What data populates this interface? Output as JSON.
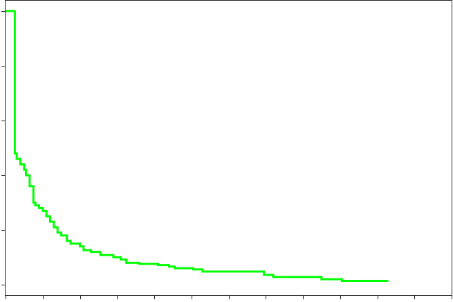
{
  "chart_data": {
    "type": "line",
    "step": true,
    "title": "",
    "xlabel": "",
    "ylabel": "",
    "xlim": [
      0,
      12
    ],
    "ylim": [
      0,
      5
    ],
    "grid": false,
    "x_ticks": [
      0,
      1,
      2,
      3,
      4,
      5,
      6,
      7,
      8,
      9,
      10,
      11,
      12
    ],
    "y_ticks": [
      0,
      1,
      2,
      3,
      4,
      5
    ],
    "series": [
      {
        "color": "#00ff00",
        "x": [
          0,
          0.25,
          0.3,
          0.4,
          0.5,
          0.55,
          0.65,
          0.75,
          0.8,
          0.9,
          1.0,
          1.1,
          1.2,
          1.3,
          1.4,
          1.5,
          1.65,
          1.75,
          2.0,
          2.1,
          2.3,
          2.55,
          2.9,
          3.1,
          3.25,
          3.6,
          4.1,
          4.4,
          4.55,
          5.05,
          5.3,
          6.6,
          6.95,
          7.2,
          8.5,
          9.05,
          10.3
        ],
        "y": [
          5.0,
          2.4,
          2.3,
          2.2,
          2.1,
          2.0,
          1.8,
          1.5,
          1.45,
          1.4,
          1.35,
          1.25,
          1.15,
          1.05,
          0.95,
          0.9,
          0.8,
          0.75,
          0.7,
          0.63,
          0.6,
          0.54,
          0.5,
          0.46,
          0.4,
          0.38,
          0.36,
          0.33,
          0.3,
          0.28,
          0.24,
          0.24,
          0.18,
          0.14,
          0.1,
          0.07,
          0.07
        ]
      }
    ]
  }
}
